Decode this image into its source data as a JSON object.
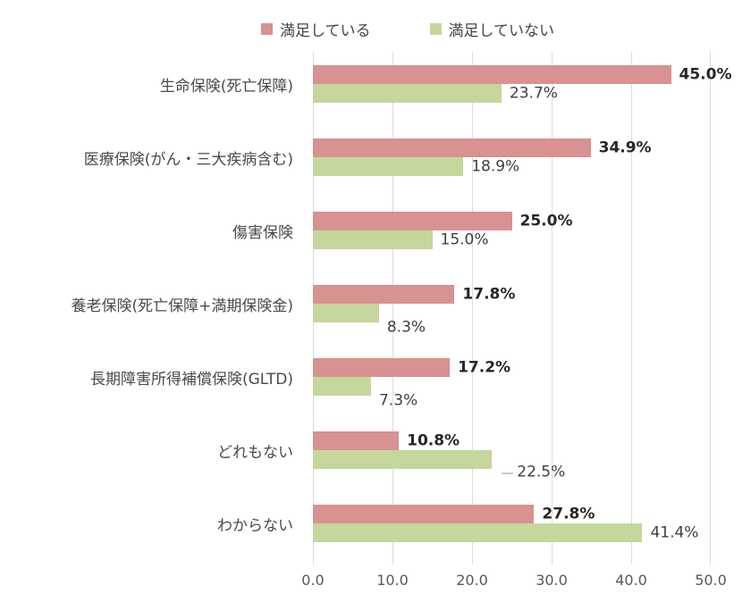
{
  "chart_data": {
    "type": "bar",
    "orientation": "horizontal",
    "title": "",
    "categories": [
      "生命保険(死亡保障)",
      "医療保険(がん・三大疾病含む)",
      "傷害保険",
      "養老保険(死亡保障+満期保険金)",
      "長期障害所得補償保険(GLTD)",
      "どれもない",
      "わからない"
    ],
    "series": [
      {
        "name": "満足している",
        "color": "#d79291",
        "values": [
          45.0,
          34.9,
          25.0,
          17.8,
          17.2,
          10.8,
          27.8
        ],
        "value_labels": [
          "45.0%",
          "34.9%",
          "25.0%",
          "17.8%",
          "17.2%",
          "10.8%",
          "27.8%"
        ]
      },
      {
        "name": "満足していない",
        "color": "#c5d79d",
        "values": [
          23.7,
          18.9,
          15.0,
          8.3,
          7.3,
          22.5,
          41.4
        ],
        "value_labels": [
          "23.7%",
          "18.9%",
          "15.0%",
          "8.3%",
          "7.3%",
          "22.5%",
          "41.4%"
        ],
        "dropped_label_index": 5,
        "low_label_indices": [
          3,
          4
        ]
      }
    ],
    "xlim": [
      0,
      50
    ],
    "x_ticks": [
      "0.0",
      "10.0",
      "20.0",
      "30.0",
      "40.0",
      "50.0"
    ],
    "grid": true,
    "gridline_color": "#dcdcdc",
    "legend_position": "top"
  }
}
